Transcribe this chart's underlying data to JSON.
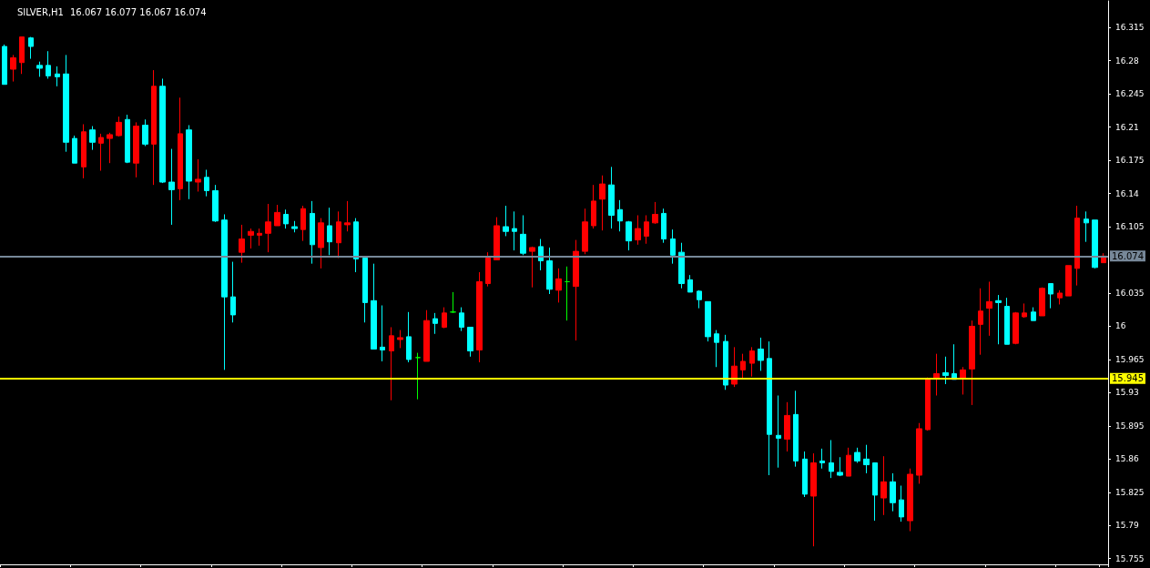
{
  "chart_data": {
    "type": "candlestick",
    "title": "SILVER,H1",
    "subtitle": "16.067 16.077 16.067 16.074",
    "categories": [
      null,
      null,
      null,
      null,
      null,
      null,
      null,
      null,
      null,
      null,
      null,
      null,
      null,
      null,
      null,
      null,
      null,
      null,
      null,
      null,
      null,
      null,
      null,
      null,
      null,
      null,
      null,
      null,
      null,
      null,
      null,
      null,
      null,
      null,
      null,
      null,
      null,
      null,
      null,
      null,
      null,
      null,
      null,
      null,
      null,
      null,
      null,
      null,
      null,
      null,
      null,
      null,
      null,
      null,
      null,
      null,
      null,
      null,
      null,
      null,
      null,
      null,
      null,
      null,
      null,
      null,
      null,
      null,
      null,
      null,
      null,
      null,
      null,
      null,
      null,
      null,
      null,
      null,
      null,
      null,
      null,
      null,
      null,
      null,
      null,
      null,
      null,
      null,
      null,
      null,
      null,
      null,
      null,
      null,
      null,
      null,
      null,
      null,
      null,
      null,
      null,
      null,
      null,
      null,
      null,
      null,
      null,
      null,
      null,
      null,
      null,
      null,
      null,
      null,
      null,
      null,
      null,
      null,
      null,
      null,
      null,
      null,
      null,
      null,
      null,
      null
    ],
    "ohlc": [
      [
        16.295,
        16.297,
        16.255,
        16.255
      ],
      [
        16.271,
        16.286,
        16.258,
        16.283
      ],
      [
        16.278,
        16.305,
        16.266,
        16.305
      ],
      [
        16.304,
        16.305,
        16.282,
        16.295
      ],
      [
        16.275,
        16.279,
        16.263,
        16.272
      ],
      [
        16.275,
        16.29,
        16.261,
        16.264
      ],
      [
        16.266,
        16.274,
        16.253,
        16.263
      ],
      [
        16.266,
        16.286,
        16.184,
        16.194
      ],
      [
        16.198,
        16.201,
        16.172,
        16.172
      ],
      [
        16.168,
        16.213,
        16.156,
        16.205
      ],
      [
        16.207,
        16.211,
        16.186,
        16.194
      ],
      [
        16.193,
        16.203,
        16.164,
        16.199
      ],
      [
        16.198,
        16.204,
        16.172,
        16.202
      ],
      [
        16.201,
        16.221,
        16.2,
        16.215
      ],
      [
        16.218,
        16.223,
        16.172,
        16.173
      ],
      [
        16.172,
        16.215,
        16.157,
        16.211
      ],
      [
        16.212,
        16.218,
        16.19,
        16.192
      ],
      [
        16.192,
        16.27,
        16.149,
        16.253
      ],
      [
        16.253,
        16.261,
        16.151,
        16.152
      ],
      [
        16.152,
        16.187,
        16.107,
        16.144
      ],
      [
        16.145,
        16.241,
        16.133,
        16.203
      ],
      [
        16.207,
        16.212,
        16.134,
        16.153
      ],
      [
        16.152,
        16.176,
        16.142,
        16.155
      ],
      [
        16.157,
        16.165,
        16.137,
        16.143
      ],
      [
        16.143,
        16.149,
        16.11,
        16.111
      ],
      [
        16.112,
        16.118,
        15.954,
        16.031
      ],
      [
        16.031,
        16.068,
        16.004,
        16.012
      ],
      [
        16.078,
        16.107,
        16.067,
        16.092
      ],
      [
        16.096,
        16.103,
        16.082,
        16.1
      ],
      [
        16.096,
        16.103,
        16.085,
        16.098
      ],
      [
        16.098,
        16.129,
        16.078,
        16.11
      ],
      [
        16.106,
        16.128,
        16.106,
        16.12
      ],
      [
        16.118,
        16.123,
        16.103,
        16.108
      ],
      [
        16.105,
        16.111,
        16.099,
        16.103
      ],
      [
        16.102,
        16.127,
        16.09,
        16.124
      ],
      [
        16.119,
        16.132,
        16.066,
        16.086
      ],
      [
        16.083,
        16.114,
        16.061,
        16.109
      ],
      [
        16.106,
        16.125,
        16.075,
        16.089
      ],
      [
        16.088,
        16.121,
        16.072,
        16.11
      ],
      [
        16.107,
        16.132,
        16.1,
        16.109
      ],
      [
        16.11,
        16.114,
        16.057,
        16.071
      ],
      [
        16.072,
        16.072,
        16.004,
        16.025
      ],
      [
        16.027,
        16.066,
        15.976,
        15.976
      ],
      [
        15.978,
        16.022,
        15.963,
        15.975
      ],
      [
        15.974,
        15.999,
        15.922,
        15.99
      ],
      [
        15.986,
        15.996,
        15.977,
        15.988
      ],
      [
        15.989,
        16.015,
        15.962,
        15.965
      ],
      [
        15.967,
        15.972,
        15.923,
        15.967
      ],
      [
        15.963,
        16.017,
        15.963,
        16.006
      ],
      [
        16.008,
        16.014,
        15.992,
        16.003
      ],
      [
        15.999,
        16.02,
        15.998,
        16.014
      ],
      [
        16.015,
        16.036,
        16.014,
        16.015
      ],
      [
        16.014,
        16.02,
        15.995,
        15.999
      ],
      [
        15.999,
        15.999,
        15.968,
        15.974
      ],
      [
        15.975,
        16.057,
        15.962,
        16.047
      ],
      [
        16.045,
        16.078,
        16.042,
        16.072
      ],
      [
        16.07,
        16.115,
        16.07,
        16.106
      ],
      [
        16.105,
        16.127,
        16.095,
        16.1
      ],
      [
        16.103,
        16.121,
        16.08,
        16.1
      ],
      [
        16.097,
        16.117,
        16.075,
        16.077
      ],
      [
        16.079,
        16.084,
        16.041,
        16.083
      ],
      [
        16.084,
        16.092,
        16.059,
        16.069
      ],
      [
        16.069,
        16.083,
        16.034,
        16.039
      ],
      [
        16.038,
        16.061,
        16.025,
        16.05
      ],
      [
        16.047,
        16.063,
        16.006,
        16.047
      ],
      [
        16.042,
        16.091,
        15.985,
        16.079
      ],
      [
        16.079,
        16.124,
        16.076,
        16.11
      ],
      [
        16.106,
        16.149,
        16.103,
        16.132
      ],
      [
        16.134,
        16.159,
        16.101,
        16.15
      ],
      [
        16.149,
        16.168,
        16.103,
        16.117
      ],
      [
        16.123,
        16.133,
        16.1,
        16.111
      ],
      [
        16.11,
        16.111,
        16.08,
        16.09
      ],
      [
        16.091,
        16.117,
        16.086,
        16.103
      ],
      [
        16.095,
        16.117,
        16.087,
        16.11
      ],
      [
        16.109,
        16.131,
        16.108,
        16.118
      ],
      [
        16.119,
        16.124,
        16.088,
        16.092
      ],
      [
        16.092,
        16.102,
        16.066,
        16.075
      ],
      [
        16.078,
        16.088,
        16.04,
        16.045
      ],
      [
        16.049,
        16.054,
        16.036,
        16.036
      ],
      [
        16.037,
        16.038,
        16.019,
        16.028
      ],
      [
        16.026,
        16.026,
        15.984,
        15.989
      ],
      [
        15.992,
        15.996,
        15.957,
        15.983
      ],
      [
        15.984,
        15.991,
        15.933,
        15.938
      ],
      [
        15.939,
        15.978,
        15.936,
        15.958
      ],
      [
        15.954,
        15.971,
        15.944,
        15.963
      ],
      [
        15.961,
        15.978,
        15.947,
        15.974
      ],
      [
        15.976,
        15.988,
        15.953,
        15.964
      ],
      [
        15.966,
        15.984,
        15.843,
        15.886
      ],
      [
        15.885,
        15.927,
        15.851,
        15.882
      ],
      [
        15.881,
        15.92,
        15.868,
        15.906
      ],
      [
        15.907,
        15.932,
        15.852,
        15.858
      ],
      [
        15.86,
        15.868,
        15.82,
        15.823
      ],
      [
        15.821,
        15.866,
        15.768,
        15.856
      ],
      [
        15.858,
        15.871,
        15.85,
        15.856
      ],
      [
        15.856,
        15.88,
        15.84,
        15.847
      ],
      [
        15.846,
        15.862,
        15.842,
        15.843
      ],
      [
        15.842,
        15.872,
        15.842,
        15.864
      ],
      [
        15.867,
        15.872,
        15.856,
        15.858
      ],
      [
        15.86,
        15.875,
        15.845,
        15.854
      ],
      [
        15.856,
        15.856,
        15.795,
        15.822
      ],
      [
        15.819,
        15.863,
        15.801,
        15.836
      ],
      [
        15.836,
        15.845,
        15.805,
        15.814
      ],
      [
        15.817,
        15.832,
        15.794,
        15.799
      ],
      [
        15.795,
        15.85,
        15.784,
        15.844
      ],
      [
        15.843,
        15.898,
        15.834,
        15.892
      ],
      [
        15.891,
        15.946,
        15.89,
        15.945
      ],
      [
        15.945,
        15.971,
        15.927,
        15.95
      ],
      [
        15.951,
        15.968,
        15.939,
        15.948
      ],
      [
        15.95,
        15.981,
        15.944,
        15.944
      ],
      [
        15.945,
        15.957,
        15.928,
        15.954
      ],
      [
        15.955,
        16.006,
        15.917,
        16.0
      ],
      [
        16.002,
        16.04,
        15.97,
        16.016
      ],
      [
        16.019,
        16.047,
        15.99,
        16.026
      ],
      [
        16.027,
        16.033,
        15.981,
        16.025
      ],
      [
        16.021,
        16.03,
        15.981,
        15.981
      ],
      [
        15.982,
        16.015,
        15.981,
        16.014
      ],
      [
        16.01,
        16.024,
        16.009,
        16.014
      ],
      [
        16.015,
        16.02,
        16.006,
        16.006
      ],
      [
        16.011,
        16.041,
        16.011,
        16.04
      ],
      [
        16.045,
        16.045,
        16.019,
        16.034
      ],
      [
        16.03,
        16.038,
        16.023,
        16.035
      ],
      [
        16.032,
        16.064,
        16.032,
        16.064
      ],
      [
        16.061,
        16.127,
        16.043,
        16.114
      ],
      [
        16.113,
        16.121,
        16.089,
        16.109
      ],
      [
        16.112,
        16.112,
        16.061,
        16.062
      ],
      [
        16.067,
        16.077,
        16.067,
        16.074
      ]
    ],
    "colors": [
      "#00ffff",
      "#ff0000",
      "#ff0000",
      "#00ffff",
      "#00ffff",
      "#00ffff",
      "#00ffff",
      "#00ffff",
      "#00ffff",
      "#ff0000",
      "#00ffff",
      "#ff0000",
      "#ff0000",
      "#ff0000",
      "#00ffff",
      "#ff0000",
      "#00ffff",
      "#ff0000",
      "#00ffff",
      "#00ffff",
      "#ff0000",
      "#00ffff",
      "#ff0000",
      "#00ffff",
      "#00ffff",
      "#00ffff",
      "#00ffff",
      "#ff0000",
      "#ff0000",
      "#ff0000",
      "#ff0000",
      "#ff0000",
      "#00ffff",
      "#00ffff",
      "#ff0000",
      "#00ffff",
      "#ff0000",
      "#00ffff",
      "#ff0000",
      "#ff0000",
      "#00ffff",
      "#00ffff",
      "#00ffff",
      "#00ffff",
      "#ff0000",
      "#ff0000",
      "#00ffff",
      "#00ff00",
      "#ff0000",
      "#00ffff",
      "#ff0000",
      "#00ff00",
      "#00ffff",
      "#00ffff",
      "#ff0000",
      "#ff0000",
      "#ff0000",
      "#00ffff",
      "#00ffff",
      "#00ffff",
      "#ff0000",
      "#00ffff",
      "#00ffff",
      "#ff0000",
      "#00ff00",
      "#ff0000",
      "#ff0000",
      "#ff0000",
      "#ff0000",
      "#00ffff",
      "#00ffff",
      "#00ffff",
      "#ff0000",
      "#ff0000",
      "#ff0000",
      "#00ffff",
      "#00ffff",
      "#00ffff",
      "#00ffff",
      "#00ffff",
      "#00ffff",
      "#00ffff",
      "#00ffff",
      "#ff0000",
      "#ff0000",
      "#ff0000",
      "#00ffff",
      "#00ffff",
      "#00ffff",
      "#ff0000",
      "#00ffff",
      "#00ffff",
      "#ff0000",
      "#00ffff",
      "#00ffff",
      "#00ffff",
      "#ff0000",
      "#00ffff",
      "#00ffff",
      "#00ffff",
      "#ff0000",
      "#00ffff",
      "#00ffff",
      "#ff0000",
      "#ff0000",
      "#ff0000",
      "#ff0000",
      "#00ffff",
      "#00ffff",
      "#ff0000",
      "#ff0000",
      "#ff0000",
      "#ff0000",
      "#00ffff",
      "#00ffff",
      "#ff0000",
      "#ff0000",
      "#00ffff",
      "#ff0000",
      "#00ffff",
      "#ff0000",
      "#ff0000",
      "#ff0000",
      "#00ffff",
      "#00ffff",
      "#ff0000"
    ],
    "ylim": [
      15.749,
      16.343
    ],
    "yticks": [
      15.755,
      15.79,
      15.825,
      15.86,
      15.895,
      15.93,
      15.965,
      16.0,
      16.035,
      16.105,
      16.14,
      16.175,
      16.21,
      16.245,
      16.28,
      16.315
    ],
    "ref_lines": [
      {
        "axis": "y",
        "value": 16.074,
        "label": "16.074",
        "color": "#778899"
      },
      {
        "axis": "y",
        "value": 15.945,
        "label": "15.945",
        "color": "#ffff00"
      }
    ],
    "grid": false
  }
}
